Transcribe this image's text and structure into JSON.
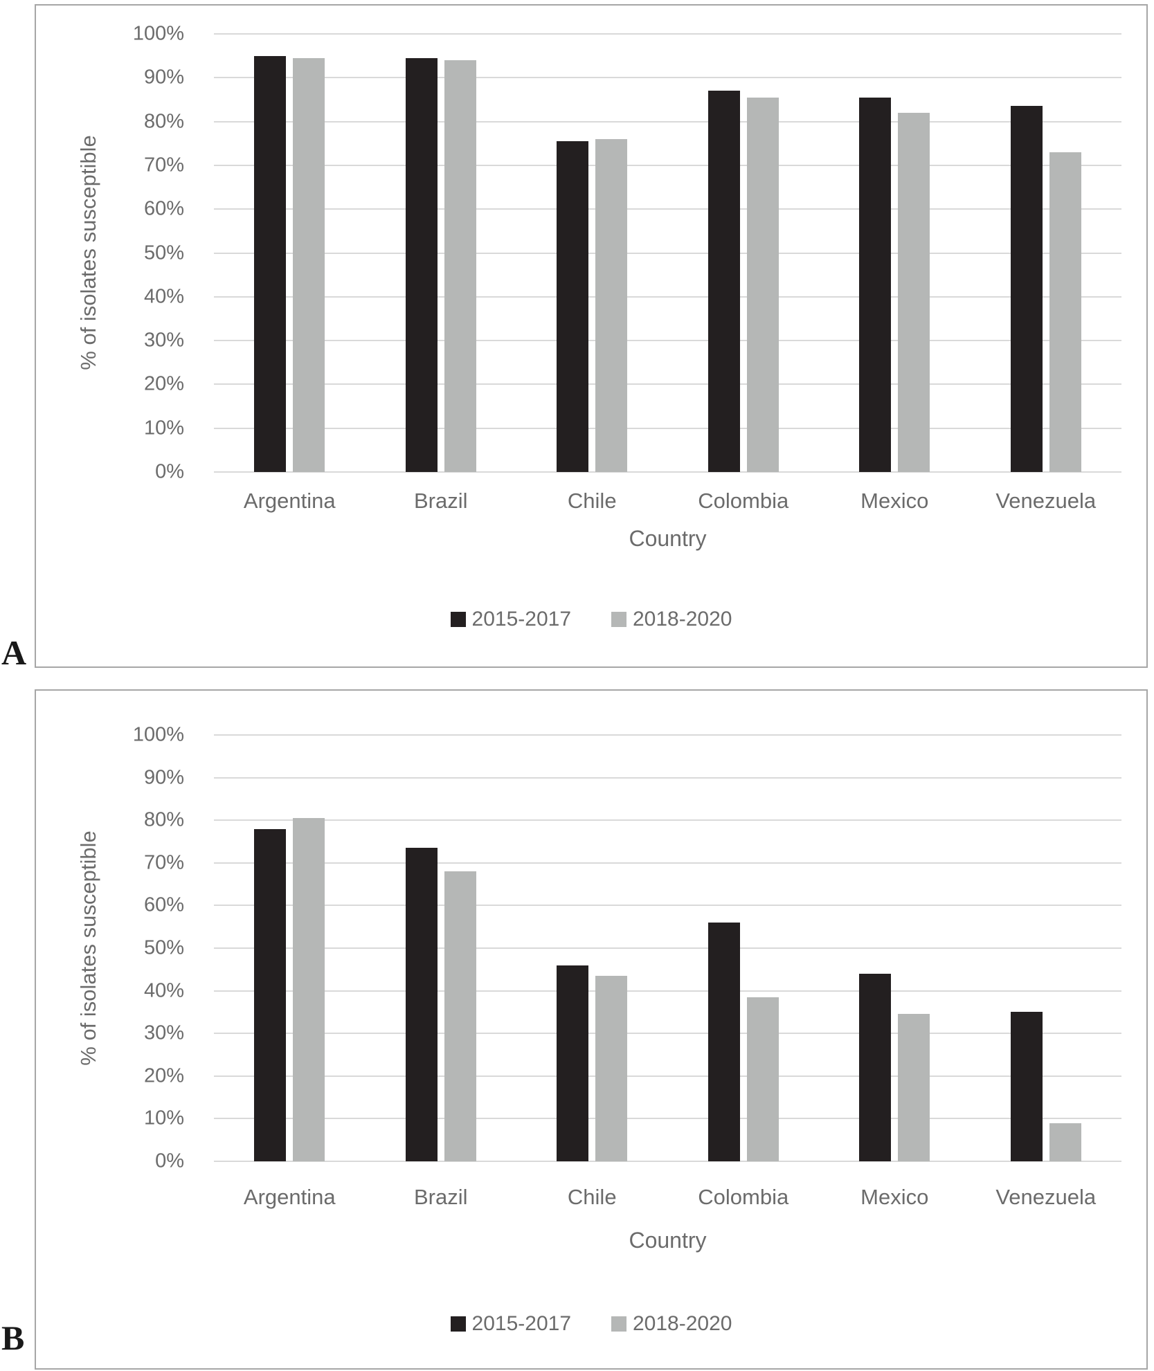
{
  "figure": {
    "background": "#ffffff",
    "panel_border_color": "#a6a6a6",
    "gridline_color": "#d9d9d9",
    "axis_text_color": "#6b6b6b"
  },
  "chart_data": [
    {
      "panel_label": "A",
      "type": "bar",
      "title": "",
      "categories": [
        "Argentina",
        "Brazil",
        "Chile",
        "Colombia",
        "Mexico",
        "Venezuela"
      ],
      "series": [
        {
          "name": "2015-2017",
          "color": "#231f20",
          "values": [
            95,
            94.5,
            75.5,
            87,
            85.5,
            83.5
          ]
        },
        {
          "name": "2018-2020",
          "color": "#b5b7b6",
          "values": [
            94.5,
            94,
            76,
            85.5,
            82,
            73
          ]
        }
      ],
      "xlabel": "Country",
      "ylabel": "% of isolates susceptible",
      "ylim": [
        0,
        100
      ],
      "ytick_step": 10,
      "ytick_suffix": "%",
      "grid": true,
      "legend_position": "bottom"
    },
    {
      "panel_label": "B",
      "type": "bar",
      "title": "",
      "categories": [
        "Argentina",
        "Brazil",
        "Chile",
        "Colombia",
        "Mexico",
        "Venezuela"
      ],
      "series": [
        {
          "name": "2015-2017",
          "color": "#231f20",
          "values": [
            78,
            73.5,
            46,
            56,
            44,
            35
          ]
        },
        {
          "name": "2018-2020",
          "color": "#b5b7b6",
          "values": [
            80.5,
            68,
            43.5,
            38.5,
            34.5,
            9
          ]
        }
      ],
      "xlabel": "Country",
      "ylabel": "% of isolates susceptible",
      "ylim": [
        0,
        100
      ],
      "ytick_step": 10,
      "ytick_suffix": "%",
      "grid": true,
      "legend_position": "bottom"
    }
  ]
}
